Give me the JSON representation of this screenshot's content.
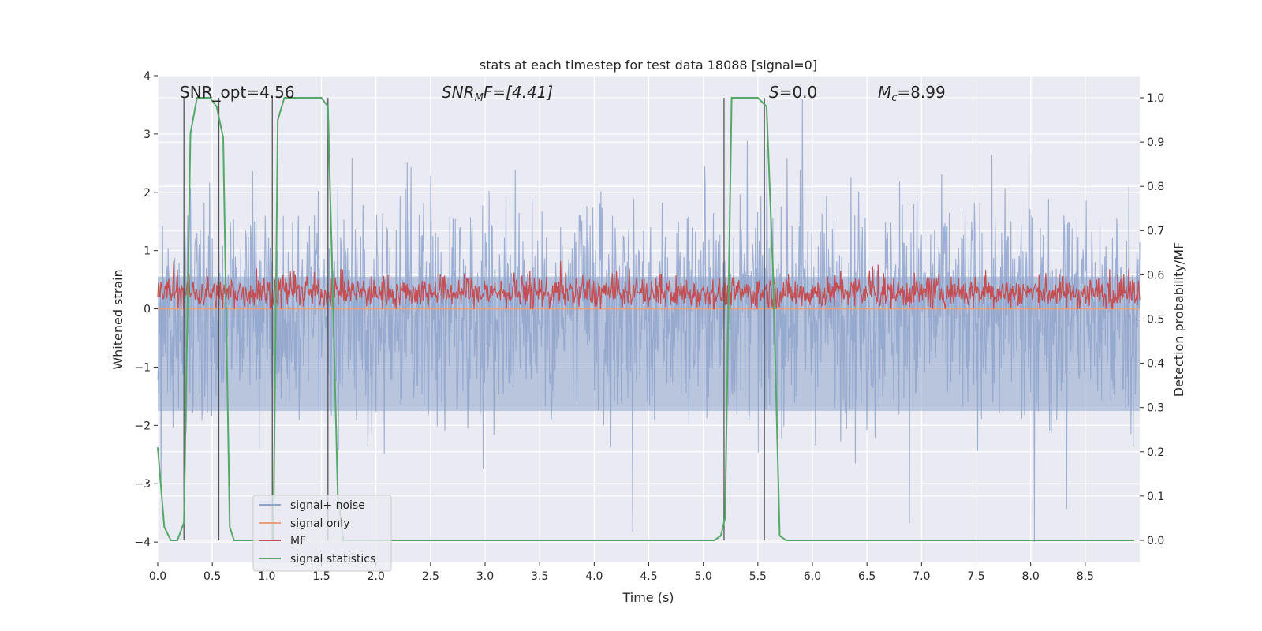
{
  "chart_data": {
    "type": "line",
    "title": "stats at each timestep for test data 18088 [signal=0]",
    "xlabel": "Time (s)",
    "ylabel_left": "Whitened strain",
    "ylabel_right": "Detection probability/MF",
    "xlim": [
      0.0,
      9.0
    ],
    "ylim_left": [
      -4.35,
      4.0
    ],
    "ylim_right": [
      -0.05,
      1.05
    ],
    "xticks": [
      0.0,
      0.5,
      1.0,
      1.5,
      2.0,
      2.5,
      3.0,
      3.5,
      4.0,
      4.5,
      5.0,
      5.5,
      6.0,
      6.5,
      7.0,
      7.5,
      8.0,
      8.5
    ],
    "xtick_labels": [
      "0.0",
      "0.5",
      "1.0",
      "1.5",
      "2.0",
      "2.5",
      "3.0",
      "3.5",
      "4.0",
      "4.5",
      "5.0",
      "5.5",
      "6.0",
      "6.5",
      "7.0",
      "7.5",
      "8.0",
      "8.5"
    ],
    "yticks_left": [
      4,
      3,
      2,
      1,
      0,
      -1,
      -2,
      -3,
      -4
    ],
    "ytick_labels_left": [
      "4",
      "3",
      "2",
      "1",
      "0",
      "−1",
      "−2",
      "−3",
      "−4"
    ],
    "yticks_right": [
      1.0,
      0.9,
      0.8,
      0.7,
      0.6,
      0.5,
      0.4,
      0.3,
      0.2,
      0.1,
      0.0
    ],
    "ytick_labels_right": [
      "1.0",
      "0.9",
      "0.8",
      "0.7",
      "0.6",
      "0.5",
      "0.4",
      "0.3",
      "0.2",
      "0.1",
      "0.0"
    ],
    "grid": true,
    "legend_position": "lower-left",
    "annotations": {
      "snr_opt": "SNR_opt=4.56",
      "snr_mf_base": "SNR",
      "snr_mf_sub": "M",
      "snr_mf_rest": "F=[4.41]",
      "s_base": "S",
      "s_rest": "=0.0",
      "mc_base": "M",
      "mc_sub": "c",
      "mc_rest": "=8.99"
    },
    "series": [
      {
        "name": "signal+ noise",
        "color": "#8fa4cc",
        "style": "noise band",
        "approx_range": [
          -4.0,
          3.6
        ]
      },
      {
        "name": "signal only",
        "color": "#e8a07a",
        "values_note": "flat",
        "level": 0.0
      },
      {
        "name": "MF",
        "color": "#c44e52",
        "style": "noise band",
        "approx_range": [
          0.0,
          0.93
        ]
      },
      {
        "name": "signal statistics",
        "color": "#55a868",
        "axis": "right",
        "x": [
          0.0,
          0.06,
          0.12,
          0.18,
          0.24,
          0.3,
          0.36,
          0.42,
          0.48,
          0.54,
          0.6,
          0.66,
          0.7,
          0.8,
          1.06,
          1.1,
          1.16,
          1.22,
          1.5,
          1.56,
          1.6,
          1.65,
          1.7,
          5.1,
          5.16,
          5.2,
          5.26,
          5.5,
          5.58,
          5.64,
          5.7,
          5.76,
          8.95
        ],
        "y": [
          0.21,
          0.03,
          0.0,
          0.0,
          0.04,
          0.92,
          1.0,
          1.0,
          1.0,
          0.98,
          0.91,
          0.03,
          0.0,
          0.0,
          0.0,
          0.95,
          1.0,
          1.0,
          1.0,
          0.98,
          0.6,
          0.1,
          0.0,
          0.0,
          0.01,
          0.05,
          1.0,
          1.0,
          0.98,
          0.6,
          0.01,
          0.0,
          0.0
        ]
      }
    ],
    "vertical_markers_s": [
      0.24,
      0.56,
      1.05,
      1.56,
      5.19,
      5.56
    ]
  }
}
